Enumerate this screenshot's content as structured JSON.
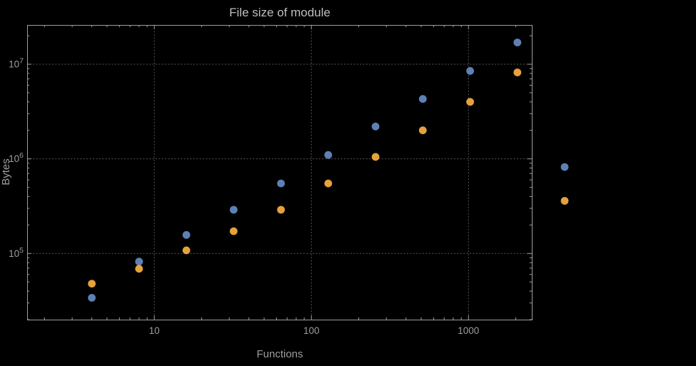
{
  "chart_data": {
    "type": "scatter",
    "title": "File size of module",
    "xlabel": "Functions",
    "ylabel": "Bytes",
    "x_scale": "log",
    "y_scale": "log",
    "x_range": [
      1.55,
      2530
    ],
    "y_range": [
      20000,
      26000000
    ],
    "x_ticks": [
      10,
      100,
      1000
    ],
    "y_ticks": [
      100000,
      1000000,
      10000000
    ],
    "grid": "major-dotted",
    "legend": "none",
    "frame": true,
    "x": [
      4,
      8,
      16,
      32,
      64,
      128,
      256,
      512,
      1024,
      2048,
      4096
    ],
    "series": [
      {
        "name": "series-blue",
        "color": "#5e81b5",
        "values": [
          34000,
          82000,
          157000,
          290000,
          550000,
          1100000,
          2200000,
          4300000,
          8500000,
          17000000,
          820000
        ]
      },
      {
        "name": "series-orange",
        "color": "#e5a23c",
        "values": [
          48000,
          69000,
          108000,
          172000,
          290000,
          550000,
          1050000,
          2000000,
          4000000,
          8200000,
          360000
        ]
      }
    ],
    "colors": {
      "background": "#000000",
      "frame": "#9e9e9e",
      "grid": "#5a5a5a",
      "tick_text": "#9e9e9e",
      "title_text": "#bfbfbf"
    },
    "marker": {
      "shape": "circle",
      "radius": 5.4
    }
  }
}
